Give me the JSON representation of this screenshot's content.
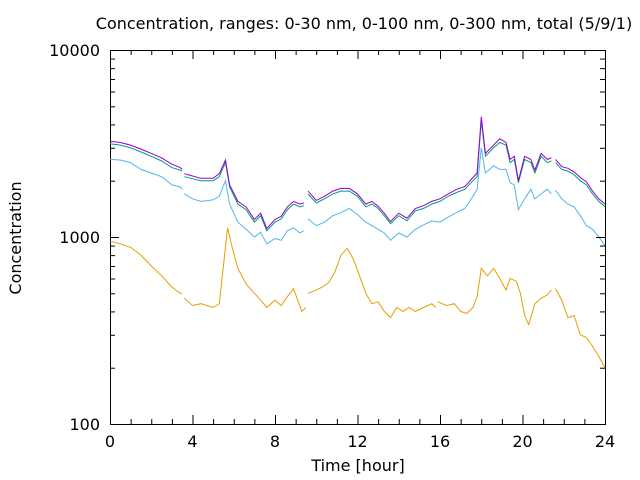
{
  "chart_data": {
    "type": "line",
    "title": "Concentration, ranges: 0-30 nm, 0-100 nm, 0-300 nm, total (5/9/1)",
    "xlabel": "Time [hour]",
    "ylabel": "Concentration",
    "xlim": [
      0,
      24
    ],
    "ylim": [
      100,
      10000
    ],
    "yscale": "log",
    "grid": false,
    "legend": "none",
    "x_ticks": [
      "0",
      "4",
      "8",
      "12",
      "16",
      "20",
      "24"
    ],
    "x_tick_values": [
      0,
      4,
      8,
      12,
      16,
      20,
      24
    ],
    "y_ticks": [
      "100",
      "1000",
      "10000"
    ],
    "y_tick_values": [
      100,
      1000,
      10000
    ],
    "series": [
      {
        "color": "#e69f00",
        "points": [
          [
            0,
            950
          ],
          [
            0.5,
            920
          ],
          [
            1,
            880
          ],
          [
            1.5,
            800
          ],
          [
            2,
            700
          ],
          [
            2.5,
            620
          ],
          [
            3,
            540
          ],
          [
            3.4,
            500
          ],
          [
            3.5,
            500
          ],
          [
            null,
            null
          ],
          [
            3.6,
            470
          ],
          [
            4,
            430
          ],
          [
            4.4,
            440
          ],
          [
            5,
            420
          ],
          [
            5.3,
            440
          ],
          [
            5.5,
            700
          ],
          [
            5.7,
            1120
          ],
          [
            5.9,
            900
          ],
          [
            6.2,
            680
          ],
          [
            6.6,
            560
          ],
          [
            7,
            500
          ],
          [
            7.3,
            460
          ],
          [
            7.6,
            420
          ],
          [
            8,
            460
          ],
          [
            8.3,
            430
          ],
          [
            8.6,
            480
          ],
          [
            8.9,
            530
          ],
          [
            9.1,
            460
          ],
          [
            9.3,
            400
          ],
          [
            9.5,
            420
          ],
          [
            null,
            null
          ],
          [
            9.6,
            500
          ],
          [
            10,
            520
          ],
          [
            10.3,
            540
          ],
          [
            10.6,
            570
          ],
          [
            10.9,
            650
          ],
          [
            11.2,
            800
          ],
          [
            11.5,
            870
          ],
          [
            11.8,
            760
          ],
          [
            12.1,
            620
          ],
          [
            12.4,
            500
          ],
          [
            12.7,
            440
          ],
          [
            13,
            450
          ],
          [
            13.3,
            400
          ],
          [
            13.6,
            370
          ],
          [
            13.9,
            420
          ],
          [
            14.2,
            400
          ],
          [
            14.5,
            420
          ],
          [
            14.8,
            400
          ],
          [
            15.2,
            420
          ],
          [
            15.6,
            440
          ],
          [
            15.8,
            420
          ],
          [
            null,
            null
          ],
          [
            15.9,
            450
          ],
          [
            16.3,
            430
          ],
          [
            16.7,
            440
          ],
          [
            17,
            400
          ],
          [
            17.3,
            390
          ],
          [
            17.6,
            420
          ],
          [
            17.8,
            480
          ],
          [
            18,
            680
          ],
          [
            18.3,
            620
          ],
          [
            18.6,
            680
          ],
          [
            18.9,
            600
          ],
          [
            19.2,
            520
          ],
          [
            19.4,
            600
          ],
          [
            19.7,
            580
          ],
          [
            19.9,
            500
          ],
          [
            20.1,
            380
          ],
          [
            20.3,
            340
          ],
          [
            20.6,
            440
          ],
          [
            20.9,
            470
          ],
          [
            21.2,
            490
          ],
          [
            21.4,
            520
          ],
          [
            null,
            null
          ],
          [
            21.6,
            530
          ],
          [
            21.9,
            460
          ],
          [
            22.2,
            370
          ],
          [
            22.5,
            380
          ],
          [
            22.8,
            300
          ],
          [
            23.1,
            290
          ],
          [
            23.4,
            260
          ],
          [
            23.7,
            230
          ],
          [
            24,
            200
          ]
        ]
      },
      {
        "color": "#56b4e9",
        "points": [
          [
            0,
            2600
          ],
          [
            0.5,
            2580
          ],
          [
            1,
            2500
          ],
          [
            1.5,
            2300
          ],
          [
            2,
            2200
          ],
          [
            2.5,
            2100
          ],
          [
            3,
            1900
          ],
          [
            3.4,
            1850
          ],
          [
            3.5,
            1800
          ],
          [
            null,
            null
          ],
          [
            3.6,
            1700
          ],
          [
            4,
            1600
          ],
          [
            4.4,
            1550
          ],
          [
            5,
            1580
          ],
          [
            5.3,
            1650
          ],
          [
            5.6,
            2000
          ],
          [
            5.8,
            1500
          ],
          [
            6.2,
            1200
          ],
          [
            6.6,
            1100
          ],
          [
            7,
            1000
          ],
          [
            7.3,
            1060
          ],
          [
            7.6,
            920
          ],
          [
            8,
            980
          ],
          [
            8.3,
            960
          ],
          [
            8.6,
            1080
          ],
          [
            8.9,
            1120
          ],
          [
            9.2,
            1050
          ],
          [
            9.4,
            1080
          ],
          [
            null,
            null
          ],
          [
            9.6,
            1250
          ],
          [
            10,
            1150
          ],
          [
            10.4,
            1200
          ],
          [
            10.8,
            1300
          ],
          [
            11.2,
            1350
          ],
          [
            11.6,
            1420
          ],
          [
            12,
            1320
          ],
          [
            12.4,
            1200
          ],
          [
            12.7,
            1150
          ],
          [
            13,
            1100
          ],
          [
            13.3,
            1050
          ],
          [
            13.6,
            960
          ],
          [
            14,
            1050
          ],
          [
            14.4,
            1000
          ],
          [
            14.8,
            1100
          ],
          [
            15.2,
            1160
          ],
          [
            15.6,
            1220
          ],
          [
            16,
            1200
          ],
          [
            16.4,
            1280
          ],
          [
            16.8,
            1350
          ],
          [
            17.2,
            1420
          ],
          [
            17.6,
            1650
          ],
          [
            17.8,
            1800
          ],
          [
            18,
            3000
          ],
          [
            18.2,
            2200
          ],
          [
            18.6,
            2400
          ],
          [
            18.9,
            2300
          ],
          [
            19.2,
            2300
          ],
          [
            19.4,
            1950
          ],
          [
            19.6,
            1900
          ],
          [
            19.8,
            1400
          ],
          [
            20.1,
            1600
          ],
          [
            20.4,
            1800
          ],
          [
            20.6,
            1600
          ],
          [
            20.9,
            1700
          ],
          [
            21.2,
            1800
          ],
          [
            21.4,
            1700
          ],
          [
            null,
            null
          ],
          [
            21.6,
            1780
          ],
          [
            21.9,
            1600
          ],
          [
            22.2,
            1500
          ],
          [
            22.5,
            1450
          ],
          [
            22.8,
            1300
          ],
          [
            23.1,
            1150
          ],
          [
            23.4,
            1100
          ],
          [
            23.7,
            1000
          ],
          [
            24,
            900
          ]
        ]
      },
      {
        "color": "#009e73",
        "points": [
          [
            0,
            3150
          ],
          [
            0.5,
            3100
          ],
          [
            1,
            3000
          ],
          [
            1.5,
            2850
          ],
          [
            2,
            2700
          ],
          [
            2.5,
            2550
          ],
          [
            3,
            2350
          ],
          [
            3.4,
            2280
          ],
          [
            3.5,
            2250
          ],
          [
            null,
            null
          ],
          [
            3.6,
            2100
          ],
          [
            4,
            2050
          ],
          [
            4.4,
            2000
          ],
          [
            5,
            2000
          ],
          [
            5.3,
            2100
          ],
          [
            5.6,
            2500
          ],
          [
            5.8,
            1850
          ],
          [
            6.2,
            1500
          ],
          [
            6.6,
            1400
          ],
          [
            7,
            1200
          ],
          [
            7.3,
            1300
          ],
          [
            7.6,
            1080
          ],
          [
            8,
            1200
          ],
          [
            8.3,
            1250
          ],
          [
            8.6,
            1400
          ],
          [
            8.9,
            1500
          ],
          [
            9.2,
            1450
          ],
          [
            9.4,
            1470
          ],
          [
            null,
            null
          ],
          [
            9.6,
            1700
          ],
          [
            10,
            1520
          ],
          [
            10.4,
            1600
          ],
          [
            10.8,
            1700
          ],
          [
            11.2,
            1760
          ],
          [
            11.6,
            1760
          ],
          [
            12,
            1650
          ],
          [
            12.4,
            1450
          ],
          [
            12.7,
            1500
          ],
          [
            13,
            1420
          ],
          [
            13.3,
            1300
          ],
          [
            13.6,
            1180
          ],
          [
            14,
            1300
          ],
          [
            14.4,
            1220
          ],
          [
            14.8,
            1380
          ],
          [
            15.2,
            1420
          ],
          [
            15.6,
            1500
          ],
          [
            16,
            1550
          ],
          [
            16.4,
            1650
          ],
          [
            16.8,
            1730
          ],
          [
            17.2,
            1800
          ],
          [
            17.6,
            2000
          ],
          [
            17.8,
            2100
          ],
          [
            18,
            4200
          ],
          [
            18.2,
            2700
          ],
          [
            18.6,
            3000
          ],
          [
            18.9,
            3200
          ],
          [
            19.2,
            3100
          ],
          [
            19.4,
            2500
          ],
          [
            19.6,
            2600
          ],
          [
            19.8,
            1950
          ],
          [
            20.1,
            2600
          ],
          [
            20.4,
            2500
          ],
          [
            20.6,
            2200
          ],
          [
            20.9,
            2700
          ],
          [
            21.2,
            2500
          ],
          [
            21.4,
            2550
          ],
          [
            null,
            null
          ],
          [
            21.6,
            2500
          ],
          [
            21.9,
            2300
          ],
          [
            22.2,
            2250
          ],
          [
            22.5,
            2150
          ],
          [
            22.8,
            2000
          ],
          [
            23.1,
            1900
          ],
          [
            23.4,
            1700
          ],
          [
            23.7,
            1550
          ],
          [
            24,
            1450
          ]
        ]
      },
      {
        "color": "#9400d3",
        "points": [
          [
            0,
            3250
          ],
          [
            0.5,
            3200
          ],
          [
            1,
            3100
          ],
          [
            1.5,
            2950
          ],
          [
            2,
            2800
          ],
          [
            2.5,
            2650
          ],
          [
            3,
            2450
          ],
          [
            3.4,
            2350
          ],
          [
            3.5,
            2300
          ],
          [
            null,
            null
          ],
          [
            3.6,
            2180
          ],
          [
            4,
            2120
          ],
          [
            4.4,
            2060
          ],
          [
            5,
            2060
          ],
          [
            5.3,
            2180
          ],
          [
            5.6,
            2580
          ],
          [
            5.8,
            1900
          ],
          [
            6.2,
            1550
          ],
          [
            6.6,
            1450
          ],
          [
            7,
            1240
          ],
          [
            7.3,
            1340
          ],
          [
            7.6,
            1110
          ],
          [
            8,
            1240
          ],
          [
            8.3,
            1290
          ],
          [
            8.6,
            1450
          ],
          [
            8.9,
            1550
          ],
          [
            9.2,
            1500
          ],
          [
            9.4,
            1520
          ],
          [
            null,
            null
          ],
          [
            9.6,
            1760
          ],
          [
            10,
            1570
          ],
          [
            10.4,
            1650
          ],
          [
            10.8,
            1760
          ],
          [
            11.2,
            1820
          ],
          [
            11.6,
            1820
          ],
          [
            12,
            1700
          ],
          [
            12.4,
            1500
          ],
          [
            12.7,
            1550
          ],
          [
            13,
            1460
          ],
          [
            13.3,
            1340
          ],
          [
            13.6,
            1210
          ],
          [
            14,
            1340
          ],
          [
            14.4,
            1260
          ],
          [
            14.8,
            1420
          ],
          [
            15.2,
            1470
          ],
          [
            15.6,
            1550
          ],
          [
            16,
            1600
          ],
          [
            16.4,
            1700
          ],
          [
            16.8,
            1800
          ],
          [
            17.2,
            1860
          ],
          [
            17.6,
            2080
          ],
          [
            17.8,
            2200
          ],
          [
            18,
            4400
          ],
          [
            18.2,
            2800
          ],
          [
            18.6,
            3100
          ],
          [
            18.9,
            3350
          ],
          [
            19.2,
            3200
          ],
          [
            19.4,
            2600
          ],
          [
            19.6,
            2700
          ],
          [
            19.8,
            2000
          ],
          [
            20.1,
            2700
          ],
          [
            20.4,
            2600
          ],
          [
            20.6,
            2280
          ],
          [
            20.9,
            2800
          ],
          [
            21.2,
            2600
          ],
          [
            21.4,
            2650
          ],
          [
            null,
            null
          ],
          [
            21.6,
            2600
          ],
          [
            21.9,
            2380
          ],
          [
            22.2,
            2330
          ],
          [
            22.5,
            2230
          ],
          [
            22.8,
            2080
          ],
          [
            23.1,
            1970
          ],
          [
            23.4,
            1760
          ],
          [
            23.7,
            1600
          ],
          [
            24,
            1500
          ]
        ]
      }
    ]
  }
}
